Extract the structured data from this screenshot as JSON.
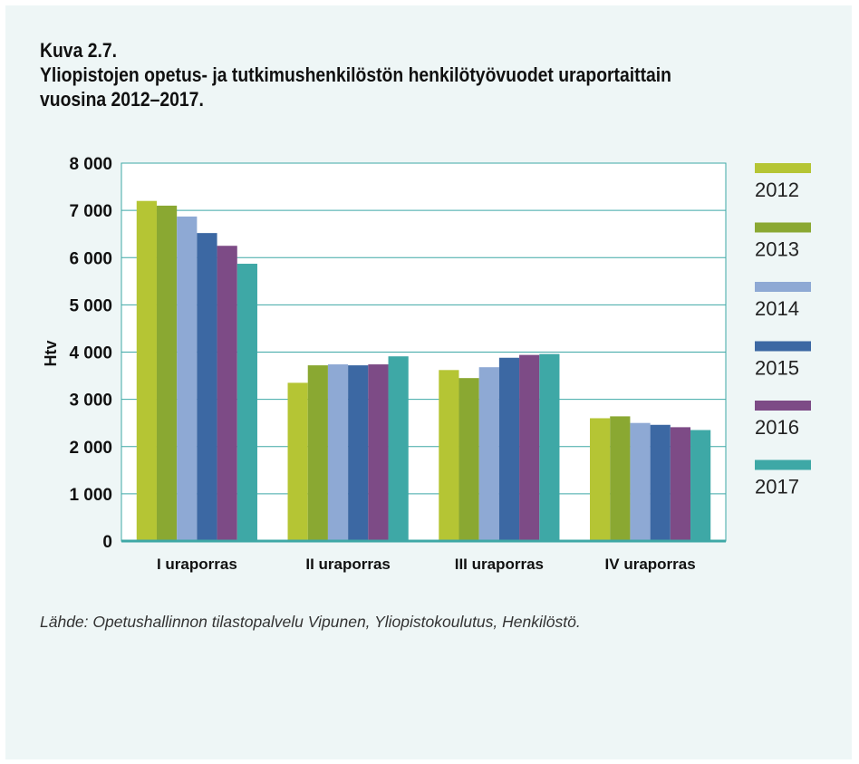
{
  "figure": {
    "number": "Kuva 2.7.",
    "title_line1": "Yliopistojen opetus- ja tutkimushenkilöstön henkilötyövuodet uraportaittain",
    "title_line2": "vuosina 2012–2017.",
    "source": "Lähde: Opetushallinnon tilastopalvelu Vipunen, Yliopistokoulutus, Henkilöstö."
  },
  "chart_data": {
    "type": "bar",
    "categories": [
      "I uraporras",
      "II uraporras",
      "III uraporras",
      "IV uraporras"
    ],
    "series": [
      {
        "name": "2012",
        "color": "#b5c534",
        "values": [
          7200,
          3350,
          3620,
          2600
        ]
      },
      {
        "name": "2013",
        "color": "#8aa832",
        "values": [
          7100,
          3720,
          3450,
          2640
        ]
      },
      {
        "name": "2014",
        "color": "#8ea9d4",
        "values": [
          6870,
          3740,
          3680,
          2500
        ]
      },
      {
        "name": "2015",
        "color": "#3c68a3",
        "values": [
          6520,
          3720,
          3880,
          2460
        ]
      },
      {
        "name": "2016",
        "color": "#7d4b86",
        "values": [
          6250,
          3740,
          3940,
          2410
        ]
      },
      {
        "name": "2017",
        "color": "#3ea8a6",
        "values": [
          5870,
          3910,
          3960,
          2350
        ]
      }
    ],
    "ylabel": "Htv",
    "ylim": [
      0,
      8000
    ],
    "yticks": [
      0,
      1000,
      2000,
      3000,
      4000,
      5000,
      6000,
      7000,
      8000
    ],
    "ytick_labels": [
      "0",
      "1 000",
      "2 000",
      "3 000",
      "4 000",
      "5 000",
      "6 000",
      "7 000",
      "8 000"
    ],
    "grid": true,
    "legend_position": "right",
    "gridline_color": "#3ea8a6"
  }
}
